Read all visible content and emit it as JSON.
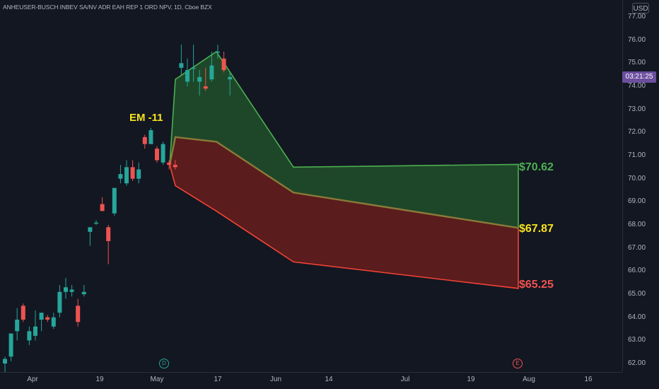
{
  "header": {
    "symbol_title": "ANHEUSER-BUSCH INBEV SA/NV ADR EAH REP 1 ORD NPV, 1D, Cboe BZX",
    "currency": "USD"
  },
  "price_axis": {
    "ticks": [
      "77.00",
      "76.00",
      "75.00",
      "74.00",
      "73.00",
      "72.00",
      "71.00",
      "70.00",
      "69.00",
      "68.00",
      "67.00",
      "66.00",
      "65.00",
      "64.00",
      "63.00",
      "62.00"
    ],
    "last_price_countdown": "03:21:25"
  },
  "time_axis": {
    "ticks": [
      "Apr",
      "19",
      "May",
      "17",
      "Jun",
      "14",
      "Jul",
      "19",
      "Aug",
      "16"
    ]
  },
  "annotations": {
    "em_label": "EM -11",
    "upper_level": "$70.62",
    "mid_level": "$67.87",
    "lower_level": "$65.25",
    "dividend_marker": "D",
    "earnings_marker": "E"
  },
  "colors": {
    "background": "#131722",
    "up_candle": "#26a69a",
    "down_candle": "#ef5350",
    "upper_zone": "#1f4a2a",
    "lower_zone": "#5e1c1c",
    "upper_line": "#4caf50",
    "lower_line": "#f44336",
    "mid_label": "#f7e41e"
  },
  "chart_data": {
    "type": "candlestick",
    "price_min": 62.0,
    "price_max": 77.0,
    "candles": [
      {
        "o": 62.0,
        "h": 62.3,
        "l": 61.6,
        "c": 62.2
      },
      {
        "o": 62.3,
        "h": 63.3,
        "l": 62.1,
        "c": 63.3
      },
      {
        "o": 63.4,
        "h": 64.4,
        "l": 63.0,
        "c": 63.9
      },
      {
        "o": 64.5,
        "h": 64.6,
        "l": 63.8,
        "c": 63.9
      },
      {
        "o": 63.0,
        "h": 63.6,
        "l": 62.8,
        "c": 63.4
      },
      {
        "o": 63.2,
        "h": 64.3,
        "l": 63.0,
        "c": 63.6
      },
      {
        "o": 63.9,
        "h": 64.2,
        "l": 63.4,
        "c": 64.2
      },
      {
        "o": 64.0,
        "h": 64.1,
        "l": 63.8,
        "c": 63.9
      },
      {
        "o": 63.6,
        "h": 64.2,
        "l": 63.5,
        "c": 64.0
      },
      {
        "o": 64.2,
        "h": 65.4,
        "l": 64.0,
        "c": 65.1
      },
      {
        "o": 65.1,
        "h": 65.7,
        "l": 64.8,
        "c": 65.3
      },
      {
        "o": 65.1,
        "h": 65.4,
        "l": 64.9,
        "c": 65.2
      },
      {
        "o": 64.5,
        "h": 64.8,
        "l": 63.6,
        "c": 63.8
      },
      {
        "o": 65.0,
        "h": 65.4,
        "l": 64.9,
        "c": 65.1
      },
      {
        "o": 67.7,
        "h": 67.8,
        "l": 67.1,
        "c": 67.9
      },
      {
        "o": 68.1,
        "h": 68.2,
        "l": 68.0,
        "c": 68.1
      },
      {
        "o": 68.9,
        "h": 69.2,
        "l": 68.6,
        "c": 68.6
      },
      {
        "o": 67.9,
        "h": 68.0,
        "l": 66.3,
        "c": 67.3
      },
      {
        "o": 68.5,
        "h": 69.6,
        "l": 68.4,
        "c": 69.6
      },
      {
        "o": 70.0,
        "h": 70.6,
        "l": 69.8,
        "c": 70.2
      },
      {
        "o": 69.8,
        "h": 70.8,
        "l": 69.7,
        "c": 70.5
      },
      {
        "o": 70.5,
        "h": 70.8,
        "l": 69.9,
        "c": 70.0
      },
      {
        "o": 70.0,
        "h": 70.7,
        "l": 69.8,
        "c": 70.4
      },
      {
        "o": 71.8,
        "h": 71.9,
        "l": 71.3,
        "c": 71.5
      },
      {
        "o": 71.5,
        "h": 72.2,
        "l": 71.5,
        "c": 72.1
      },
      {
        "o": 71.3,
        "h": 71.4,
        "l": 70.7,
        "c": 70.8
      },
      {
        "o": 70.7,
        "h": 71.6,
        "l": 70.6,
        "c": 71.5
      },
      {
        "o": 70.7,
        "h": 70.8,
        "l": 70.4,
        "c": 70.6
      },
      {
        "o": 70.6,
        "h": 70.8,
        "l": 70.4,
        "c": 70.5
      },
      {
        "o": 74.8,
        "h": 75.8,
        "l": 74.5,
        "c": 75.0
      },
      {
        "o": 74.2,
        "h": 75.2,
        "l": 74.0,
        "c": 74.7
      },
      {
        "o": 74.8,
        "h": 75.8,
        "l": 74.2,
        "c": 74.8
      },
      {
        "o": 74.2,
        "h": 74.7,
        "l": 73.6,
        "c": 74.4
      },
      {
        "o": 74.0,
        "h": 74.8,
        "l": 73.8,
        "c": 73.9
      },
      {
        "o": 74.3,
        "h": 75.5,
        "l": 74.2,
        "c": 74.9
      },
      {
        "o": 75.5,
        "h": 75.8,
        "l": 75.2,
        "c": 75.5
      },
      {
        "o": 75.2,
        "h": 75.5,
        "l": 74.6,
        "c": 74.7
      },
      {
        "o": 74.3,
        "h": 74.6,
        "l": 73.6,
        "c": 74.4
      }
    ],
    "expected_move": {
      "label": "EM -11",
      "upper_target": 70.62,
      "mid_target": 67.87,
      "lower_target": 65.25
    }
  }
}
